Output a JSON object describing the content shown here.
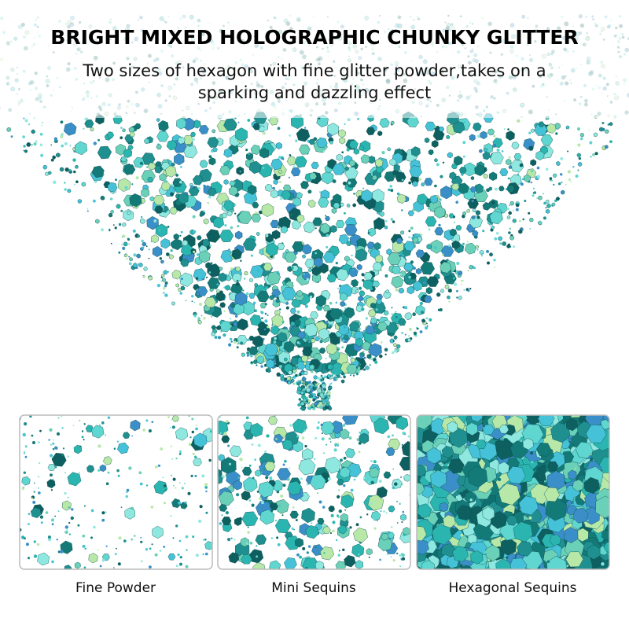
{
  "header": {
    "title": "BRIGHT MIXED HOLOGRAPHIC CHUNKY GLITTER",
    "subtitle_lines": [
      "Two sizes of hexagon with fine glitter powder,takes on a",
      "sparking and dazzling effect"
    ]
  },
  "panels": [
    {
      "label": "Fine Powder"
    },
    {
      "label": "Mini Sequins"
    },
    {
      "label": "Hexagonal Sequins"
    }
  ]
}
